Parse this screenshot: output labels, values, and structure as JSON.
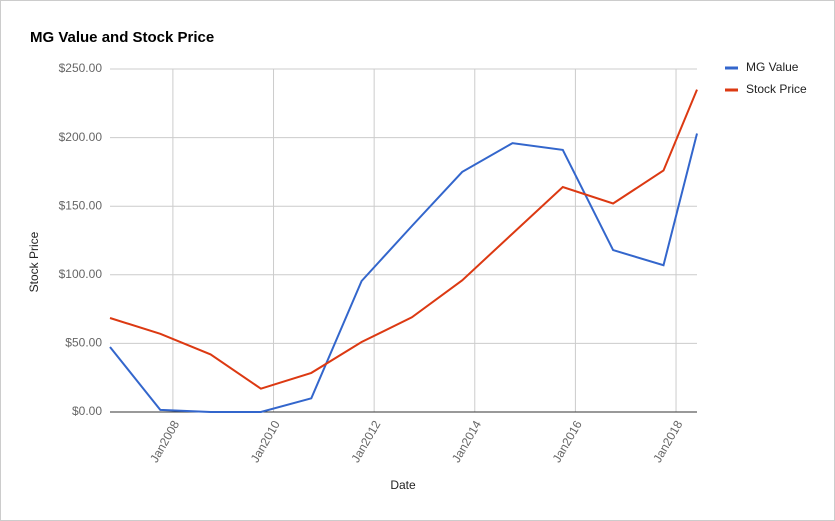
{
  "chart_data": {
    "type": "line",
    "title": "MG Value and Stock Price",
    "x_label": "Date",
    "y_label": "Stock Price",
    "x": [
      "2006-10",
      "2007-10",
      "2008-10",
      "2009-10",
      "2010-10",
      "2011-10",
      "2012-10",
      "2013-10",
      "2014-10",
      "2015-10",
      "2016-10",
      "2017-10",
      "2018-06"
    ],
    "series": [
      {
        "name": "MG Value",
        "color": "#3366cc",
        "values": [
          47.4,
          1.5,
          0,
          0,
          10,
          95.5,
          135.6,
          175,
          196,
          191,
          118,
          107,
          203
        ]
      },
      {
        "name": "Stock Price",
        "color": "#dc3912",
        "values": [
          68.5,
          57,
          42,
          17,
          28.5,
          51,
          69,
          96,
          130,
          164,
          152,
          176,
          235
        ]
      }
    ],
    "xlim": [
      "2006-10",
      "2018-06"
    ],
    "xticks": [
      {
        "value": "2008-01",
        "label": "Jan2008"
      },
      {
        "value": "2010-01",
        "label": "Jan2010"
      },
      {
        "value": "2012-01",
        "label": "Jan2012"
      },
      {
        "value": "2014-01",
        "label": "Jan2014"
      },
      {
        "value": "2016-01",
        "label": "Jan2016"
      },
      {
        "value": "2018-01",
        "label": "Jan2018"
      }
    ],
    "ylim": [
      0,
      250
    ],
    "yticks": [
      {
        "value": 0,
        "label": "$0.00"
      },
      {
        "value": 50,
        "label": "$50.00"
      },
      {
        "value": 100,
        "label": "$100.00"
      },
      {
        "value": 150,
        "label": "$150.00"
      },
      {
        "value": 200,
        "label": "$200.00"
      },
      {
        "value": 250,
        "label": "$250.00"
      }
    ],
    "grid": true,
    "legend": "right"
  }
}
